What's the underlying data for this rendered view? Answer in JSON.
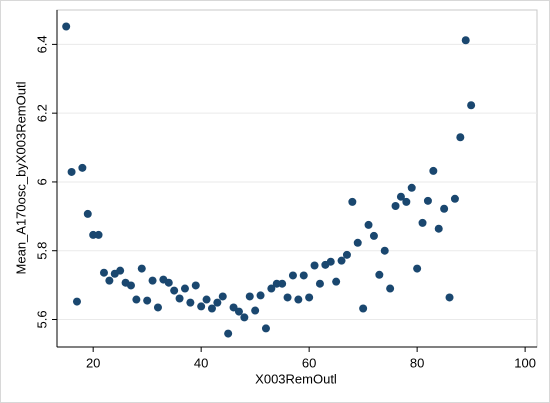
{
  "chart_data": {
    "type": "scatter",
    "x_label": "X003RemOutl",
    "y_label": "Mean_A170osc_byX003RemOutl",
    "color": "#1a476f",
    "grid": true,
    "xlim": [
      13.3,
      102.2
    ],
    "ylim": [
      5.52,
      6.5
    ],
    "xticks": [
      20,
      40,
      60,
      80,
      100
    ],
    "yticks": [
      5.6,
      5.8,
      6,
      6.2,
      6.4
    ],
    "x": [
      15,
      16,
      17,
      18,
      19,
      20,
      21,
      22,
      23,
      24,
      25,
      26,
      27,
      28,
      29,
      30,
      31,
      32,
      33,
      34,
      35,
      36,
      37,
      38,
      39,
      40,
      41,
      42,
      43,
      44,
      45,
      46,
      47,
      48,
      49,
      50,
      51,
      52,
      53,
      54,
      55,
      56,
      57,
      58,
      59,
      60,
      61,
      62,
      63,
      64,
      65,
      66,
      67,
      68,
      69,
      70,
      71,
      72,
      73,
      74,
      75,
      76,
      77,
      78,
      79,
      80,
      81,
      82,
      83,
      84,
      85,
      86,
      87,
      88,
      89,
      90
    ],
    "values": [
      6.452,
      6.029,
      5.652,
      6.041,
      5.907,
      5.846,
      5.846,
      5.736,
      5.713,
      5.733,
      5.742,
      5.707,
      5.699,
      5.658,
      5.748,
      5.655,
      5.713,
      5.635,
      5.716,
      5.707,
      5.684,
      5.661,
      5.69,
      5.649,
      5.699,
      5.638,
      5.658,
      5.632,
      5.649,
      5.667,
      5.559,
      5.635,
      5.623,
      5.606,
      5.667,
      5.626,
      5.67,
      5.574,
      5.69,
      5.704,
      5.704,
      5.664,
      5.728,
      5.658,
      5.728,
      5.664,
      5.757,
      5.704,
      5.759,
      5.768,
      5.71,
      5.771,
      5.788,
      5.942,
      5.823,
      5.632,
      5.875,
      5.843,
      5.73,
      5.8,
      5.69,
      5.93,
      5.957,
      5.942,
      5.983,
      5.748,
      5.881,
      5.945,
      6.032,
      5.864,
      5.922,
      5.664,
      5.951,
      6.13,
      6.412,
      6.223
    ]
  }
}
